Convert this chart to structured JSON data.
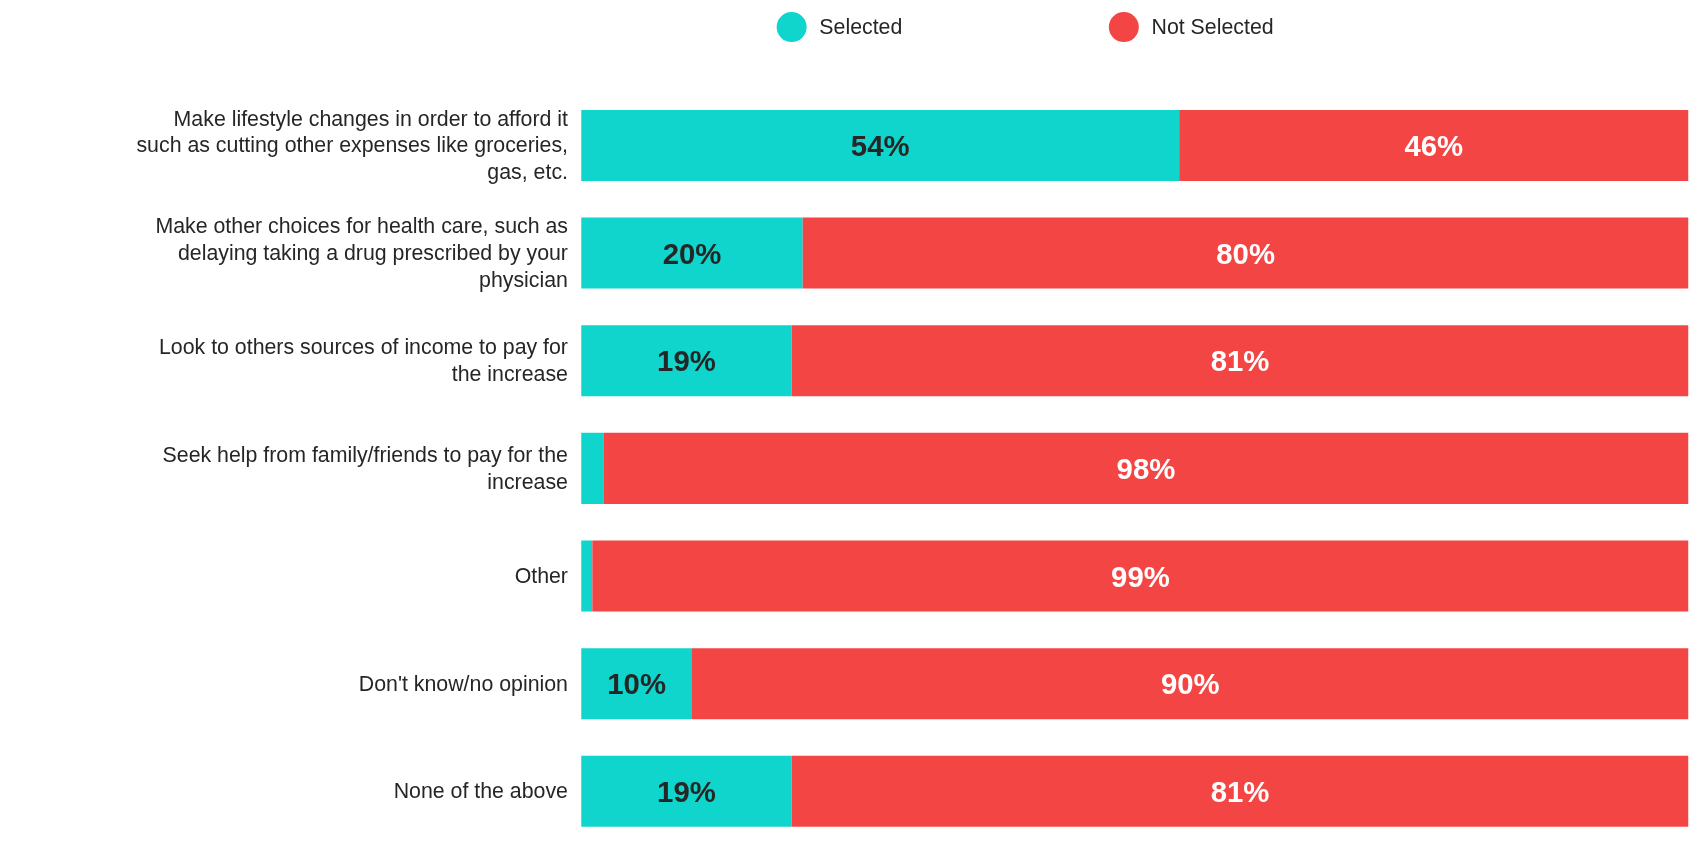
{
  "chart_data": {
    "type": "bar",
    "orientation": "horizontal",
    "stacked": true,
    "categories": [
      "Make lifestyle changes in order to afford it such as cutting other expenses like groceries, gas, etc.",
      "Make other choices for health care, such as delaying taking a drug prescribed by your physician",
      "Look to others sources of income to pay for the increase",
      "Seek help from family/friends to pay for the increase",
      "Other",
      "Don't know/no opinion",
      "None of the above"
    ],
    "series": [
      {
        "name": "Selected",
        "color": "#10d5cc",
        "values": [
          54,
          20,
          19,
          2,
          1,
          10,
          19
        ],
        "value_labels": [
          "54%",
          "20%",
          "19%",
          null,
          null,
          "10%",
          "19%"
        ]
      },
      {
        "name": "Not Selected",
        "color": "#f44545",
        "values": [
          46,
          80,
          81,
          98,
          99,
          90,
          81
        ],
        "value_labels": [
          "46%",
          "80%",
          "81%",
          "98%",
          "99%",
          "90%",
          "81%"
        ]
      }
    ],
    "xlim": [
      0,
      100
    ],
    "tick_labels": "y",
    "grid": false,
    "legend": "top",
    "marker": "circle"
  }
}
